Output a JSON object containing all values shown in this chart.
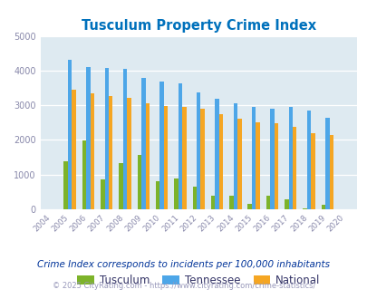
{
  "title": "Tusculum Property Crime Index",
  "years": [
    2004,
    2005,
    2006,
    2007,
    2008,
    2009,
    2010,
    2011,
    2012,
    2013,
    2014,
    2015,
    2016,
    2017,
    2018,
    2019,
    2020
  ],
  "tusculum": [
    0,
    1380,
    1980,
    860,
    1340,
    1570,
    820,
    900,
    650,
    400,
    400,
    160,
    400,
    280,
    20,
    130,
    0
  ],
  "tennessee": [
    0,
    4300,
    4100,
    4080,
    4050,
    3780,
    3680,
    3620,
    3380,
    3180,
    3060,
    2960,
    2900,
    2950,
    2860,
    2650,
    0
  ],
  "national": [
    0,
    3450,
    3340,
    3260,
    3220,
    3060,
    2970,
    2960,
    2900,
    2750,
    2620,
    2500,
    2470,
    2370,
    2190,
    2140,
    0
  ],
  "tusculum_color": "#7db32a",
  "tennessee_color": "#4da6e8",
  "national_color": "#f5a623",
  "bg_color": "#deeaf1",
  "title_color": "#0071bc",
  "footnote1": "Crime Index corresponds to incidents per 100,000 inhabitants",
  "footnote2": "© 2025 CityRating.com - https://www.cityrating.com/crime-statistics/",
  "ylim": [
    0,
    5000
  ],
  "bar_width": 0.22
}
